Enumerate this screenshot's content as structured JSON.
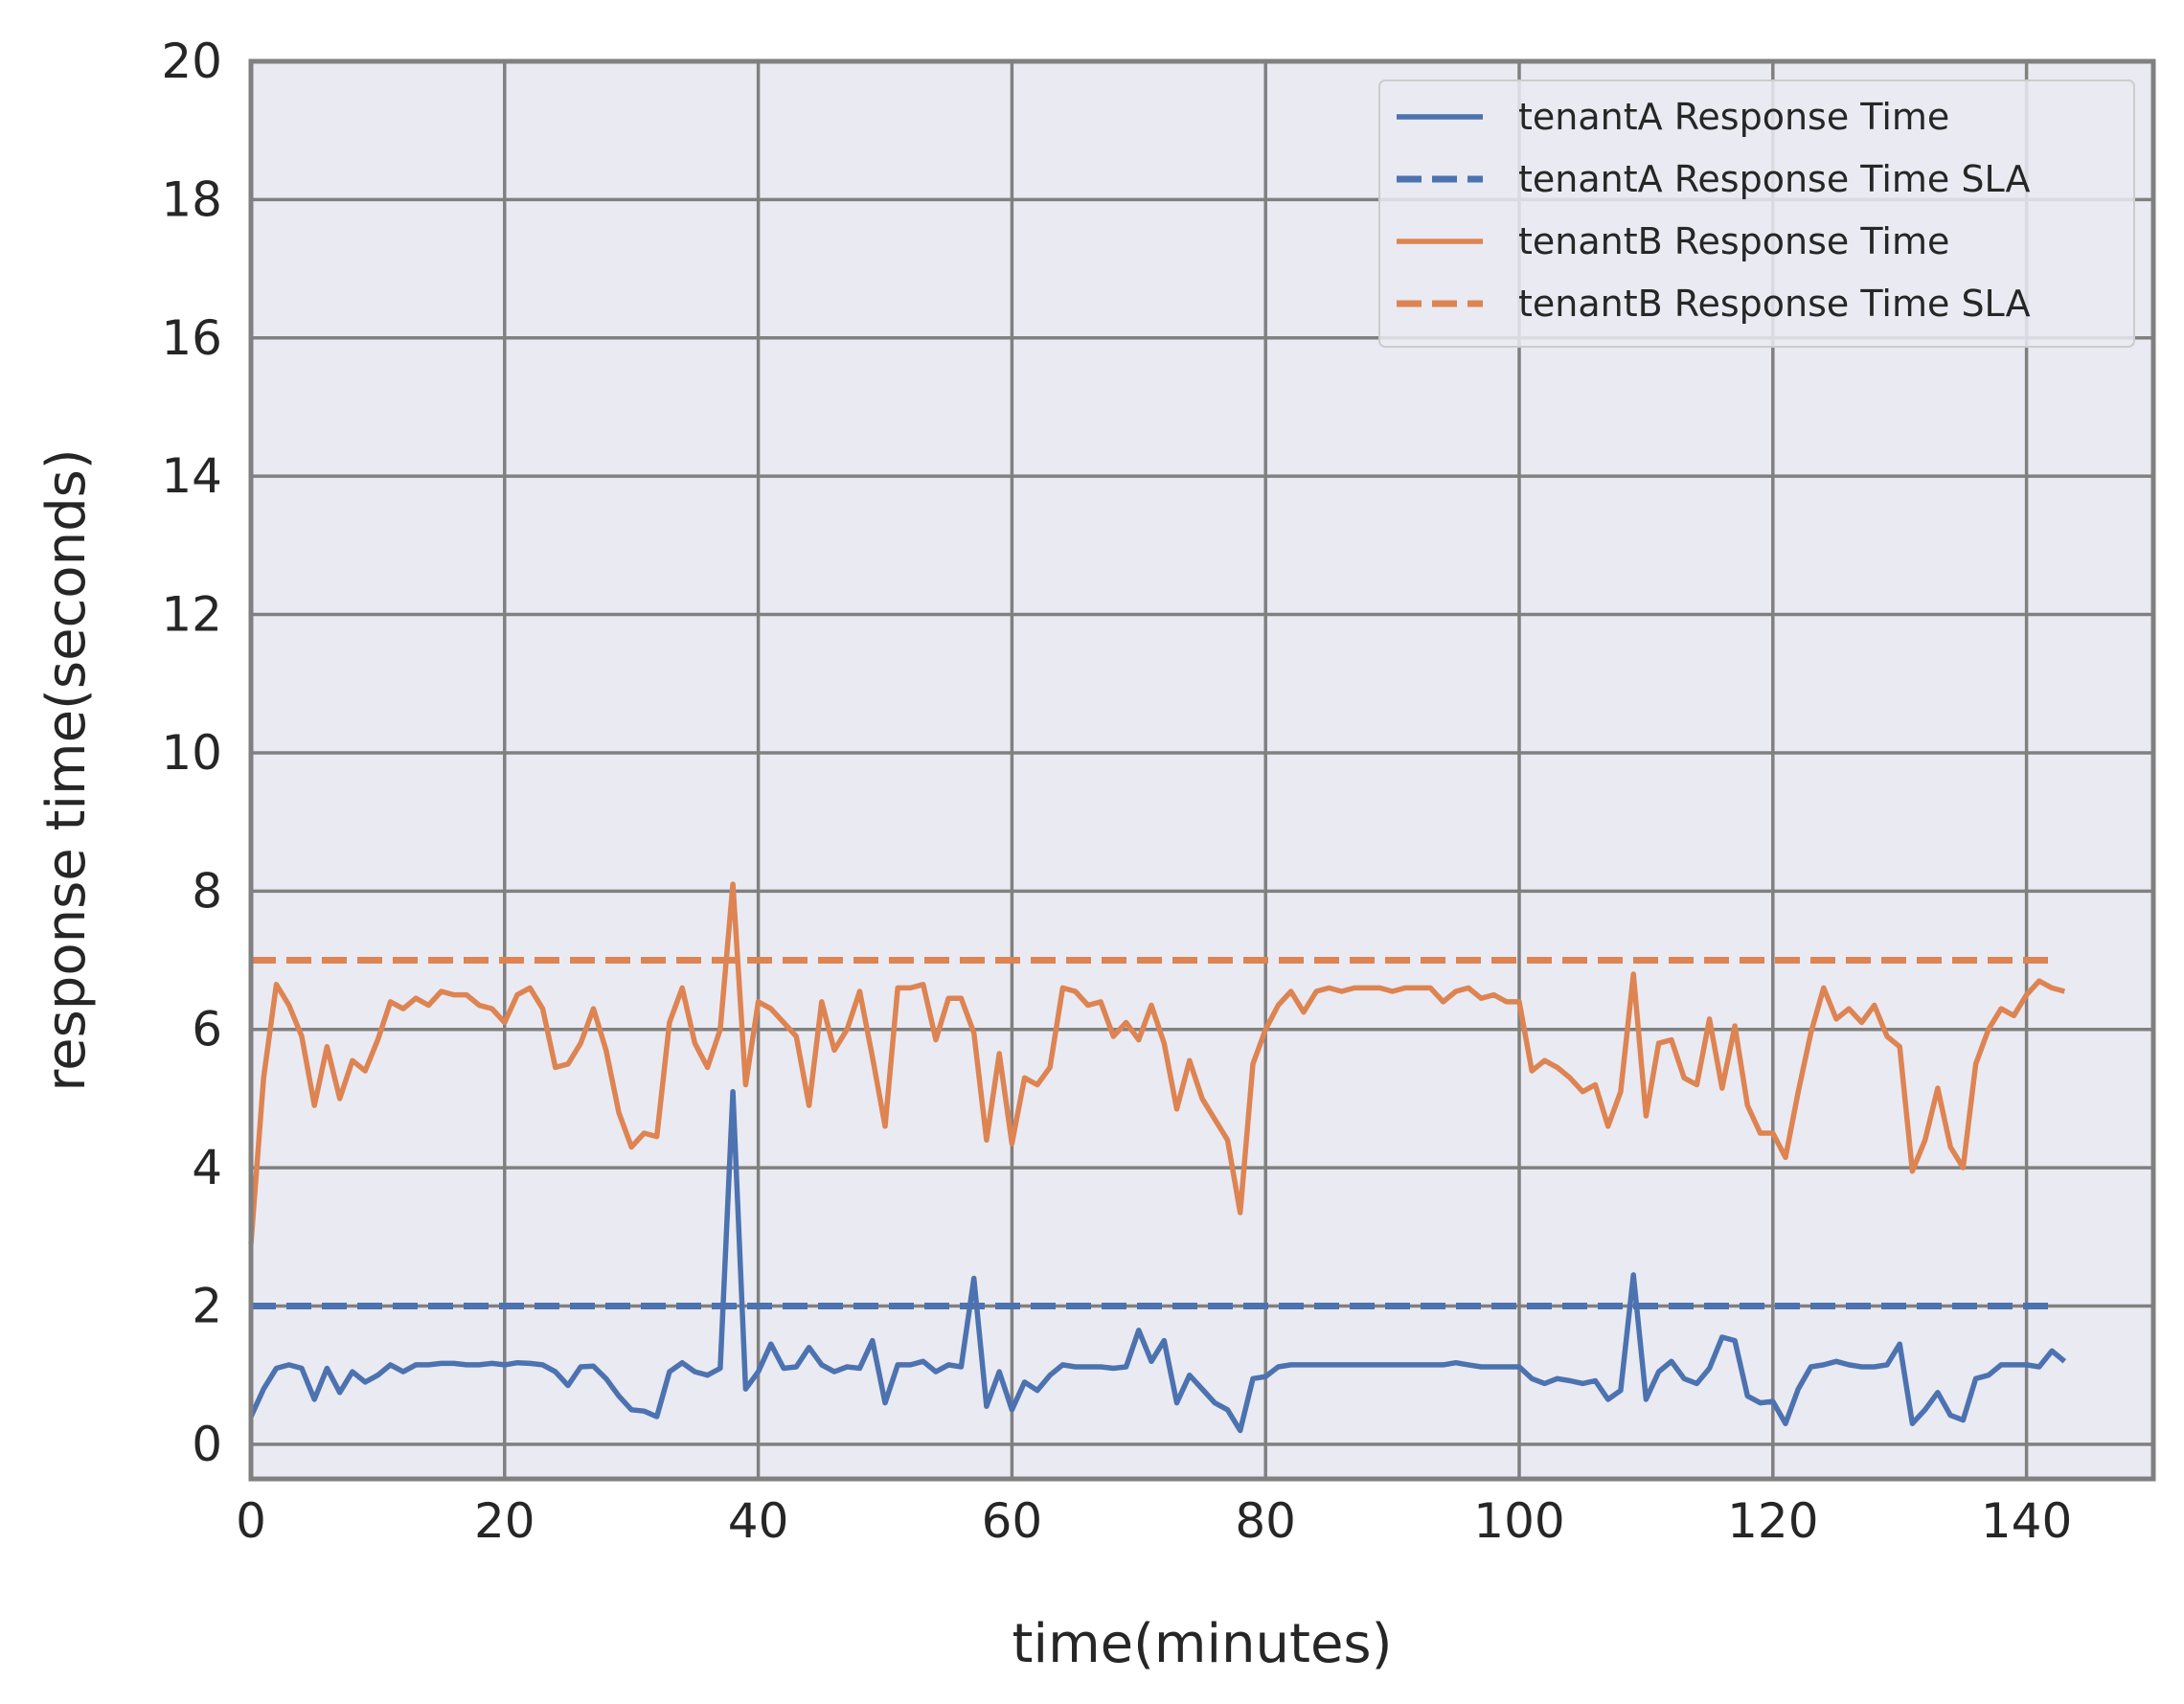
{
  "chart_data": {
    "type": "line",
    "title": "",
    "xlabel": "time(minutes)",
    "ylabel": "response time(seconds)",
    "xlim": [
      0,
      150
    ],
    "ylim": [
      -0.5,
      20
    ],
    "x_ticks": [
      0,
      20,
      40,
      60,
      80,
      100,
      120,
      140
    ],
    "y_ticks": [
      0,
      2,
      4,
      6,
      8,
      10,
      12,
      14,
      16,
      18,
      20
    ],
    "grid": true,
    "legend_position": "top-right",
    "colors": {
      "tenantA": "#4c72b0",
      "tenantB": "#dd8452",
      "background": "#eaeaf2",
      "grid": "#808080"
    },
    "series": [
      {
        "name": "tenantA Response Time",
        "color": "#4c72b0",
        "style": "solid",
        "x": [
          0,
          1,
          2,
          3,
          4,
          5,
          6,
          7,
          8,
          9,
          10,
          11,
          12,
          13,
          14,
          15,
          16,
          17,
          18,
          19,
          20,
          21,
          22,
          23,
          24,
          25,
          26,
          27,
          28,
          29,
          30,
          31,
          32,
          33,
          34,
          35,
          36,
          37,
          38,
          39,
          40,
          41,
          42,
          43,
          44,
          45,
          46,
          47,
          48,
          49,
          50,
          51,
          52,
          53,
          54,
          55,
          56,
          57,
          58,
          59,
          60,
          61,
          62,
          63,
          64,
          65,
          66,
          67,
          68,
          69,
          70,
          71,
          72,
          73,
          74,
          75,
          76,
          77,
          78,
          79,
          80,
          81,
          82,
          83,
          84,
          85,
          86,
          87,
          88,
          89,
          90,
          91,
          92,
          93,
          94,
          95,
          96,
          97,
          98,
          99,
          100,
          101,
          102,
          103,
          104,
          105,
          106,
          107,
          108,
          109,
          110,
          111,
          112,
          113,
          114,
          115,
          116,
          117,
          118,
          119,
          120,
          121,
          122,
          123,
          124,
          125,
          126,
          127,
          128,
          129,
          130,
          131,
          132,
          133,
          134,
          135,
          136,
          137,
          138,
          139,
          140,
          141,
          142,
          143
        ],
        "y": [
          0.4,
          0.8,
          1.1,
          1.15,
          1.1,
          0.65,
          1.1,
          0.75,
          1.05,
          0.9,
          1.0,
          1.15,
          1.05,
          1.15,
          1.15,
          1.17,
          1.17,
          1.15,
          1.15,
          1.17,
          1.15,
          1.18,
          1.17,
          1.15,
          1.05,
          0.85,
          1.12,
          1.13,
          0.95,
          0.7,
          0.5,
          0.48,
          0.4,
          1.05,
          1.18,
          1.05,
          1.0,
          1.1,
          5.1,
          0.8,
          1.05,
          1.45,
          1.1,
          1.12,
          1.4,
          1.15,
          1.05,
          1.12,
          1.1,
          1.5,
          0.6,
          1.15,
          1.15,
          1.2,
          1.05,
          1.15,
          1.12,
          2.4,
          0.55,
          1.05,
          0.5,
          0.9,
          0.78,
          1.0,
          1.15,
          1.12,
          1.12,
          1.12,
          1.1,
          1.12,
          1.65,
          1.2,
          1.5,
          0.6,
          1.0,
          0.8,
          0.6,
          0.5,
          0.2,
          0.95,
          0.98,
          1.12,
          1.15,
          1.15,
          1.15,
          1.15,
          1.15,
          1.15,
          1.15,
          1.15,
          1.15,
          1.15,
          1.15,
          1.15,
          1.15,
          1.18,
          1.15,
          1.12,
          1.12,
          1.12,
          1.12,
          0.95,
          0.88,
          0.95,
          0.92,
          0.88,
          0.92,
          0.65,
          0.78,
          2.45,
          0.65,
          1.05,
          1.2,
          0.95,
          0.88,
          1.1,
          1.55,
          1.5,
          0.7,
          0.6,
          0.62,
          0.3,
          0.8,
          1.12,
          1.15,
          1.2,
          1.15,
          1.12,
          1.12,
          1.15,
          1.45,
          0.3,
          0.5,
          0.75,
          0.42,
          0.35,
          0.95,
          1.0,
          1.15,
          1.15,
          1.15,
          1.12,
          1.35,
          1.2
        ]
      },
      {
        "name": "tenantA Response Time SLA",
        "color": "#4c72b0",
        "style": "dashed",
        "x": [
          0,
          142
        ],
        "y": [
          2,
          2
        ]
      },
      {
        "name": "tenantB Response Time",
        "color": "#dd8452",
        "style": "solid",
        "x": [
          0,
          1,
          2,
          3,
          4,
          5,
          6,
          7,
          8,
          9,
          10,
          11,
          12,
          13,
          14,
          15,
          16,
          17,
          18,
          19,
          20,
          21,
          22,
          23,
          24,
          25,
          26,
          27,
          28,
          29,
          30,
          31,
          32,
          33,
          34,
          35,
          36,
          37,
          38,
          39,
          40,
          41,
          42,
          43,
          44,
          45,
          46,
          47,
          48,
          49,
          50,
          51,
          52,
          53,
          54,
          55,
          56,
          57,
          58,
          59,
          60,
          61,
          62,
          63,
          64,
          65,
          66,
          67,
          68,
          69,
          70,
          71,
          72,
          73,
          74,
          75,
          76,
          77,
          78,
          79,
          80,
          81,
          82,
          83,
          84,
          85,
          86,
          87,
          88,
          89,
          90,
          91,
          92,
          93,
          94,
          95,
          96,
          97,
          98,
          99,
          100,
          101,
          102,
          103,
          104,
          105,
          106,
          107,
          108,
          109,
          110,
          111,
          112,
          113,
          114,
          115,
          116,
          117,
          118,
          119,
          120,
          121,
          122,
          123,
          124,
          125,
          126,
          127,
          128,
          129,
          130,
          131,
          132,
          133,
          134,
          135,
          136,
          137,
          138,
          139,
          140,
          141,
          142,
          143
        ],
        "y": [
          2.9,
          5.3,
          6.65,
          6.35,
          5.9,
          4.9,
          5.75,
          5.0,
          5.55,
          5.4,
          5.85,
          6.4,
          6.3,
          6.45,
          6.35,
          6.55,
          6.5,
          6.5,
          6.35,
          6.3,
          6.1,
          6.5,
          6.6,
          6.3,
          5.45,
          5.5,
          5.8,
          6.3,
          5.7,
          4.8,
          4.3,
          4.5,
          4.45,
          6.1,
          6.6,
          5.8,
          5.45,
          6.0,
          8.1,
          5.2,
          6.4,
          6.3,
          6.1,
          5.9,
          4.9,
          6.4,
          5.7,
          6.0,
          6.55,
          5.6,
          4.6,
          6.6,
          6.6,
          6.65,
          5.85,
          6.45,
          6.45,
          5.95,
          4.4,
          5.65,
          4.35,
          5.3,
          5.2,
          5.45,
          6.6,
          6.55,
          6.35,
          6.4,
          5.9,
          6.1,
          5.85,
          6.35,
          5.8,
          4.85,
          5.55,
          5.0,
          4.7,
          4.4,
          3.35,
          5.5,
          6.0,
          6.35,
          6.55,
          6.25,
          6.55,
          6.6,
          6.55,
          6.6,
          6.6,
          6.6,
          6.55,
          6.6,
          6.6,
          6.6,
          6.4,
          6.55,
          6.6,
          6.45,
          6.5,
          6.4,
          6.4,
          5.4,
          5.55,
          5.45,
          5.3,
          5.1,
          5.2,
          4.6,
          5.1,
          6.8,
          4.75,
          5.8,
          5.85,
          5.3,
          5.2,
          6.15,
          5.15,
          6.05,
          4.9,
          4.5,
          4.5,
          4.15,
          5.1,
          5.95,
          6.6,
          6.15,
          6.3,
          6.1,
          6.35,
          5.9,
          5.75,
          3.95,
          4.4,
          5.15,
          4.3,
          4.0,
          5.5,
          6.0,
          6.3,
          6.2,
          6.5,
          6.7,
          6.6,
          6.55
        ]
      },
      {
        "name": "tenantB Response Time SLA",
        "color": "#dd8452",
        "style": "dashed",
        "x": [
          0,
          142
        ],
        "y": [
          7,
          7
        ]
      }
    ]
  }
}
